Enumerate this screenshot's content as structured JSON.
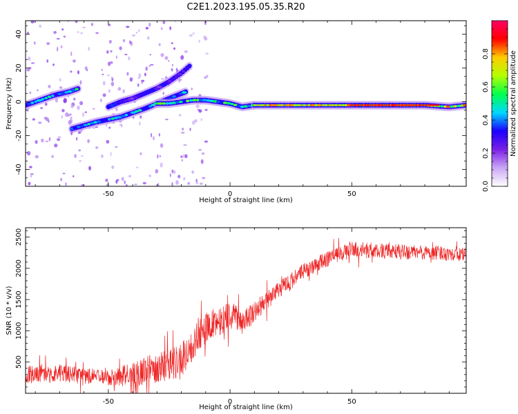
{
  "title": "C2E1.2023.195.05.35.R20",
  "chart_data": [
    {
      "type": "heatmap",
      "xlabel": "Height of straight line (km)",
      "ylabel": "Frequency (Hz)",
      "xlim": [
        -84,
        97
      ],
      "ylim": [
        -50,
        48
      ],
      "xticks": [
        -50,
        0,
        50
      ],
      "yticks": [
        -40,
        -20,
        0,
        20,
        40
      ],
      "tracks": [
        {
          "x": [
            -84,
            -78,
            -72,
            -66,
            -62
          ],
          "y": [
            -2,
            1,
            4,
            6,
            8
          ],
          "intensity": 0.55
        },
        {
          "x": [
            -65,
            -55,
            -45,
            -35,
            -25,
            -18
          ],
          "y": [
            -16,
            -12,
            -9,
            -4,
            2,
            6
          ],
          "intensity": 0.5
        },
        {
          "x": [
            -50,
            -45,
            -40,
            -35,
            -30,
            -25,
            -20,
            -16
          ],
          "y": [
            -3,
            0,
            2,
            5,
            8,
            12,
            17,
            22
          ],
          "intensity": 0.35
        },
        {
          "x": [
            -30,
            -25,
            -20,
            -15,
            -10,
            -5,
            0,
            5,
            10
          ],
          "y": [
            -1,
            -1,
            0,
            1,
            1,
            0,
            -1,
            -3,
            -2
          ],
          "intensity": 0.6
        },
        {
          "x": [
            10,
            20,
            30,
            40,
            50,
            60,
            70,
            80,
            90,
            97
          ],
          "y": [
            -2,
            -2,
            -2,
            -2,
            -2,
            -2,
            -2,
            -2,
            -3,
            -2
          ],
          "intensity": 0.85
        }
      ],
      "colorbar": {
        "label": "Normalized spectral amplitude",
        "range": [
          0,
          1
        ],
        "ticks": [
          "0.0",
          "0.2",
          "0.4",
          "0.6",
          "0.8"
        ],
        "colors": [
          "#ffffff",
          "#c9a6f5",
          "#7b1fe6",
          "#1a00ff",
          "#00d9ff",
          "#00ff4d",
          "#b3ff00",
          "#ffcc00",
          "#ff0000",
          "#ff0066"
        ]
      }
    },
    {
      "type": "line",
      "xlabel": "Height of straight line (km)",
      "ylabel": "SNR (10 * v/v)",
      "xlim": [
        -84,
        97
      ],
      "ylim": [
        0,
        2650
      ],
      "xticks": [
        -50,
        0,
        50
      ],
      "yticks": [
        500,
        1000,
        1500,
        2000,
        2500
      ],
      "color": "#ee2222",
      "baseline": {
        "x": [
          -84,
          -70,
          -60,
          -50,
          -40,
          -30,
          -20,
          -15,
          -10,
          -5,
          0,
          5,
          10,
          20,
          30,
          40,
          50,
          60,
          70,
          80,
          90,
          97
        ],
        "y": [
          300,
          320,
          280,
          250,
          300,
          420,
          520,
          800,
          1050,
          1150,
          1250,
          1150,
          1300,
          1650,
          1950,
          2150,
          2300,
          2280,
          2260,
          2250,
          2240,
          2220
        ]
      },
      "noise": {
        "x": [
          -84,
          -50,
          -40,
          -20,
          -10,
          0,
          10,
          30,
          50,
          97
        ],
        "amp": [
          300,
          250,
          400,
          600,
          500,
          450,
          350,
          250,
          260,
          230
        ]
      }
    }
  ]
}
